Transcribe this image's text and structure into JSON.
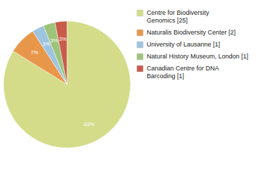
{
  "chart_data": {
    "type": "pie",
    "categories": [
      "Centre for Biodiversity\nGenomics [25]",
      "Naturalis Biodiversity Center [2]",
      "University of Lausanne [1]",
      "Natural History Museum, London [1]",
      "Canadian Centre for DNA\nBarcoding [1]"
    ],
    "values": [
      83,
      7,
      3,
      3,
      3
    ],
    "value_labels": [
      "83%",
      "7%",
      "3%",
      "3%",
      "3%"
    ],
    "colors": [
      "#d4dc8a",
      "#e8974a",
      "#9ec4e0",
      "#9dc47a",
      "#c95b4a"
    ],
    "data_labels": true,
    "legend": "right"
  }
}
